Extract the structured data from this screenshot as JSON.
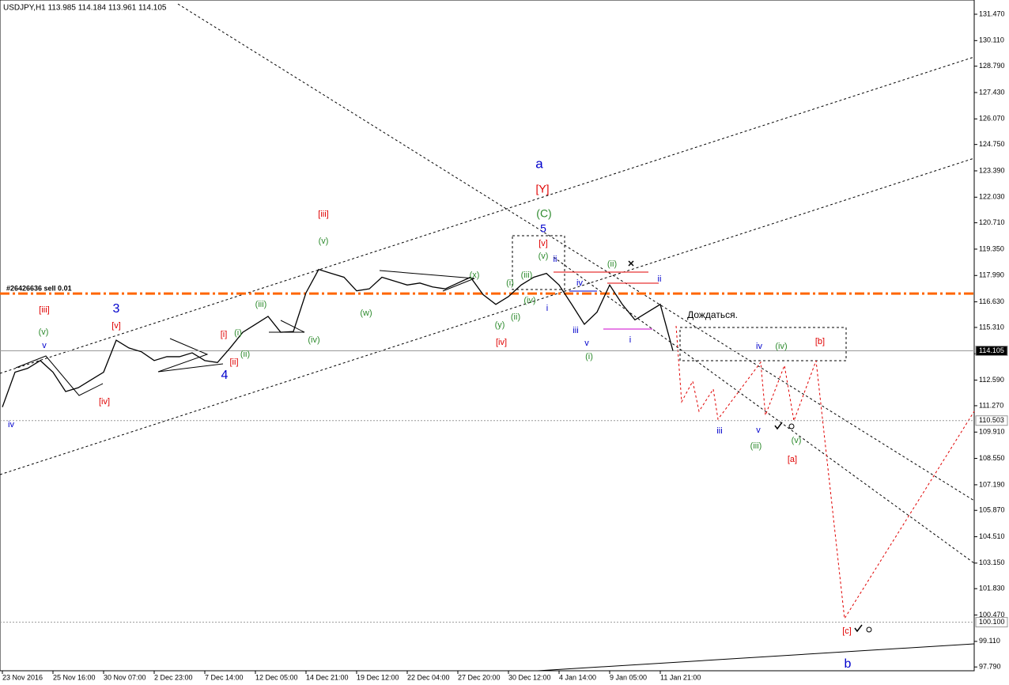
{
  "chart_data": {
    "type": "line",
    "title": "USDJPY,H1  113.985 114.184 113.961 114.105",
    "categories": [
      "23 Nov 2016",
      null,
      null,
      null,
      "25 Nov 16:00",
      null,
      null,
      null,
      "30 Nov 07:00",
      null,
      null,
      null,
      "2 Dec 23:00",
      null,
      null,
      null,
      "7 Dec 14:00",
      null,
      null,
      null,
      "12 Dec 05:00",
      null,
      null,
      null,
      "14 Dec 21:00",
      null,
      null,
      null,
      "19 Dec 12:00",
      null,
      null,
      null,
      "22 Dec 04:00",
      null,
      null,
      null,
      "27 Dec 20:00",
      null,
      null,
      null,
      "30 Dec 12:00",
      null,
      null,
      null,
      "4 Jan 14:00",
      null,
      null,
      null,
      "9 Jan 05:00",
      null,
      null,
      null,
      "11 Jan 21:00",
      null
    ],
    "values": [
      111.2,
      113.0,
      113.2,
      113.6,
      113.0,
      112.0,
      112.2,
      112.6,
      113.0,
      114.65,
      114.25,
      114.05,
      113.6,
      113.8,
      113.8,
      114.0,
      113.6,
      113.5,
      114.25,
      115.06,
      115.47,
      115.88,
      115.06,
      115.1,
      117.1,
      118.3,
      118.1,
      117.9,
      117.2,
      117.3,
      117.9,
      117.7,
      117.5,
      117.6,
      117.4,
      117.3,
      117.6,
      117.9,
      117.0,
      116.5,
      116.9,
      117.5,
      117.9,
      118.1,
      117.5,
      116.5,
      115.47,
      116.1,
      117.5,
      116.5,
      115.7,
      116.1,
      116.5,
      114.105
    ],
    "color": "#000000",
    "ylim": [
      97.594,
      132.205
    ],
    "yticks": [
      {
        "value": 131.47,
        "label": "131.470"
      },
      {
        "value": 130.11,
        "label": "130.110"
      },
      {
        "value": 128.79,
        "label": "128.790"
      },
      {
        "value": 127.43,
        "label": "127.430"
      },
      {
        "value": 126.07,
        "label": "126.070"
      },
      {
        "value": 124.75,
        "label": "124.750"
      },
      {
        "value": 123.39,
        "label": "123.390"
      },
      {
        "value": 122.03,
        "label": "122.030"
      },
      {
        "value": 120.71,
        "label": "120.710"
      },
      {
        "value": 119.35,
        "label": "119.350"
      },
      {
        "value": 117.99,
        "label": "117.990"
      },
      {
        "value": 116.63,
        "label": "116.630"
      },
      {
        "value": 115.31,
        "label": "115.310"
      },
      {
        "value": 113.95,
        "label": "113.950"
      },
      {
        "value": 112.59,
        "label": "112.590"
      },
      {
        "value": 111.27,
        "label": "111.270"
      },
      {
        "value": 109.91,
        "label": "109.910"
      },
      {
        "value": 108.55,
        "label": "108.550"
      },
      {
        "value": 107.19,
        "label": "107.190"
      },
      {
        "value": 105.87,
        "label": "105.870"
      },
      {
        "value": 104.51,
        "label": "104.510"
      },
      {
        "value": 103.15,
        "label": "103.150"
      },
      {
        "value": 101.83,
        "label": "101.830"
      },
      {
        "value": 100.47,
        "label": "100.470"
      },
      {
        "value": 99.11,
        "label": "99.110"
      },
      {
        "value": 97.79,
        "label": "97.790"
      }
    ],
    "price_labels": [
      114.105,
      110.503,
      {
        "value": 100.1,
        "label": "100.100"
      }
    ],
    "order_line": {
      "label": "#26426636 sell 0.01",
      "price": 117.06,
      "color": "#ff6600"
    },
    "annotations": [
      "a",
      "[Y]",
      "(C)",
      "5",
      "[v]",
      "(v)",
      "ii",
      "(iii)",
      "(i)",
      "(iv)",
      "i",
      "(x)",
      "(y)",
      "(ii)",
      "[iv]",
      "iv",
      "(ii)",
      "ii",
      "iii",
      "v",
      "(i)",
      "i",
      "Дождаться.",
      "iv",
      "(iv)",
      "[b]",
      "iii",
      "v",
      "(iii)",
      "(v)",
      "[a]",
      "[c]",
      "b",
      "[iii]",
      "(v)",
      "(iii)",
      "(w)",
      "(iv)",
      "(i)",
      "(ii)",
      "[i]",
      "[ii]",
      "4",
      "3",
      "[v]",
      "[iv]",
      "[iii]",
      "(v)",
      "v",
      "iv"
    ]
  }
}
